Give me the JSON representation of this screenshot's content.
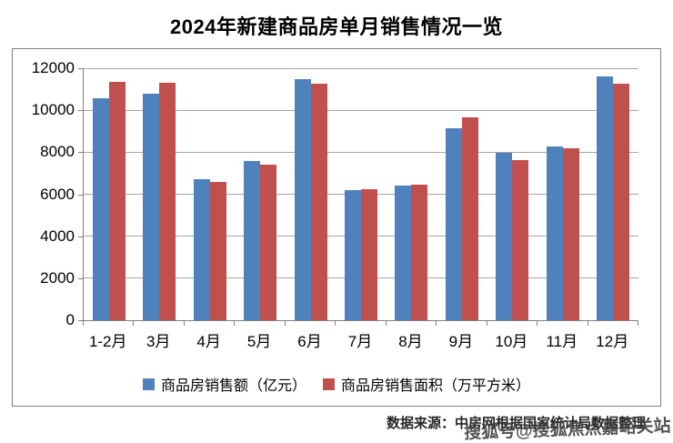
{
  "title": "2024年新建商品房单月销售情况一览",
  "chart_data": {
    "type": "bar",
    "title": "2024年新建商品房单月销售情况一览",
    "categories": [
      "1-2月",
      "3月",
      "4月",
      "5月",
      "6月",
      "7月",
      "8月",
      "9月",
      "10月",
      "11月",
      "12月"
    ],
    "series": [
      {
        "key": "sales-amount",
        "name": "商品房销售额（亿元）",
        "color": "#4F81BD",
        "values": [
          10566,
          10789,
          6712,
          7598,
          11468,
          6197,
          6393,
          9157,
          7975,
          8270,
          11625
        ]
      },
      {
        "key": "sales-area",
        "name": "商品房销售面积（万平方米）",
        "color": "#C0504D",
        "values": [
          11369,
          11299,
          6584,
          7390,
          11274,
          6233,
          6453,
          9682,
          7646,
          8188,
          11267
        ]
      }
    ],
    "xlabel": "",
    "ylabel": "",
    "ylim": [
      0,
      12000
    ],
    "yticks": [
      0,
      2000,
      4000,
      6000,
      8000,
      10000,
      12000
    ],
    "grid": true,
    "legend_position": "bottom"
  },
  "footer": {
    "source_text": "数据来源：中房网根据国家统计局数据整理"
  },
  "watermark": "搜狐号@搜狐焦点嘉峪关站"
}
